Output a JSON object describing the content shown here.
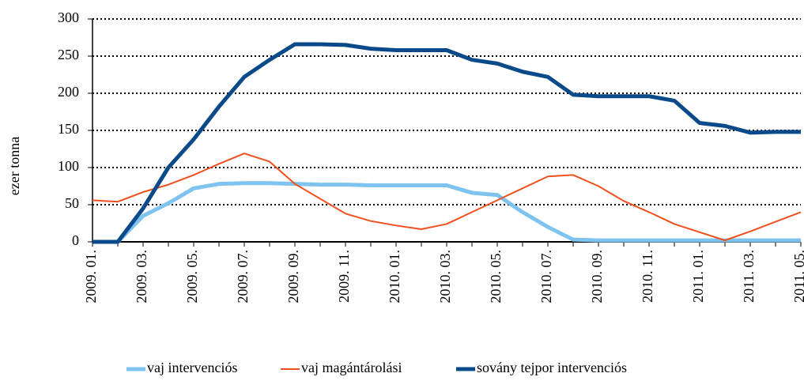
{
  "chart_data": {
    "type": "line",
    "ylabel": "ezer tonna",
    "categories": [
      "2009. 01.",
      null,
      "2009. 03.",
      null,
      "2009. 05.",
      null,
      "2009. 07.",
      null,
      "2009. 09.",
      null,
      "2009. 11.",
      null,
      "2010. 01.",
      null,
      "2010. 03.",
      null,
      "2010. 05.",
      null,
      "2010. 07.",
      null,
      "2010. 09.",
      null,
      "2010. 11.",
      null,
      "2011. 01.",
      null,
      "2011. 03.",
      null,
      "2011. 05."
    ],
    "series": [
      {
        "name": "vaj intervenciós",
        "color": "#7fc4f0",
        "values": [
          0,
          0,
          35,
          52,
          72,
          78,
          79,
          79,
          78,
          77,
          77,
          76,
          76,
          76,
          76,
          66,
          63,
          40,
          20,
          3,
          2,
          2,
          2,
          2,
          2,
          2,
          2,
          2,
          2
        ]
      },
      {
        "name": "vaj magántárolási",
        "color": "#f0501e",
        "values": [
          56,
          54,
          67,
          77,
          90,
          105,
          119,
          108,
          78,
          58,
          38,
          28,
          22,
          17,
          24,
          40,
          56,
          72,
          88,
          90,
          75,
          55,
          40,
          24,
          13,
          2,
          14,
          27,
          40
        ]
      },
      {
        "name": "sovány tejpor intervenciós",
        "color": "#0b4a8a",
        "values": [
          0,
          0,
          45,
          100,
          138,
          182,
          222,
          245,
          266,
          266,
          265,
          260,
          258,
          258,
          258,
          245,
          240,
          229,
          222,
          198,
          196,
          196,
          196,
          190,
          160,
          156,
          147,
          148,
          148
        ]
      }
    ],
    "ylim": [
      0,
      300
    ],
    "yticks": [
      0,
      50,
      100,
      150,
      200,
      250,
      300
    ],
    "grid": true,
    "legend": "bottom"
  }
}
